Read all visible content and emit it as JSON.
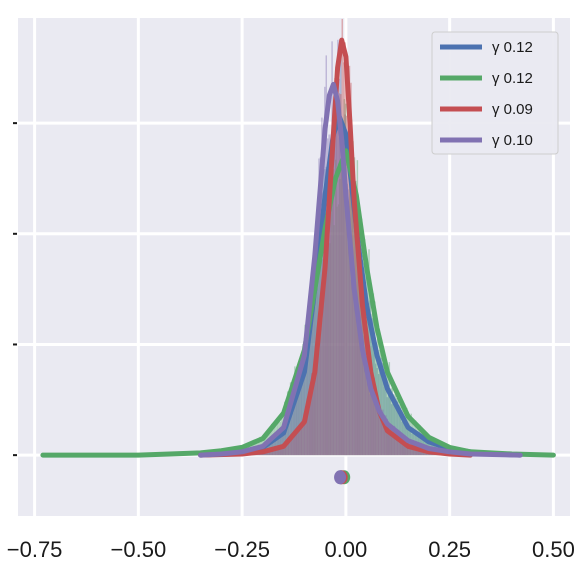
{
  "chart_data": {
    "type": "line",
    "title": "",
    "xlabel": "",
    "ylabel": "",
    "xlim": [
      -0.79,
      0.54
    ],
    "ylim": [
      -0.55,
      3.95
    ],
    "grid": true,
    "legend_position": "top-right",
    "x_ticks": [
      -0.75,
      -0.5,
      -0.25,
      0.0,
      0.25,
      0.5
    ],
    "x_tick_labels": [
      "−0.75",
      "−0.50",
      "−0.25",
      "0.00",
      "0.25",
      "0.50"
    ],
    "y_ticks": [
      0,
      1,
      2,
      3,
      4
    ],
    "series": [
      {
        "name": "γ 0.12",
        "color": "#4c72b0",
        "x": [
          -0.35,
          -0.3,
          -0.25,
          -0.2,
          -0.15,
          -0.1,
          -0.075,
          -0.05,
          -0.03,
          -0.015,
          0.0,
          0.015,
          0.03,
          0.05,
          0.075,
          0.1,
          0.15,
          0.2,
          0.25,
          0.3,
          0.35,
          0.42
        ],
        "y": [
          0.0,
          0.01,
          0.03,
          0.07,
          0.2,
          0.75,
          1.5,
          2.35,
          2.9,
          3.05,
          2.9,
          2.4,
          1.9,
          1.35,
          0.9,
          0.6,
          0.25,
          0.12,
          0.06,
          0.03,
          0.01,
          0.0
        ]
      },
      {
        "name": "γ 0.12",
        "color": "#55a868",
        "x": [
          -0.73,
          -0.5,
          -0.35,
          -0.3,
          -0.25,
          -0.2,
          -0.15,
          -0.1,
          -0.075,
          -0.05,
          -0.025,
          0.0,
          0.025,
          0.05,
          0.075,
          0.1,
          0.15,
          0.2,
          0.25,
          0.3,
          0.4,
          0.5
        ],
        "y": [
          0.0,
          0.0,
          0.02,
          0.04,
          0.07,
          0.15,
          0.38,
          0.95,
          1.5,
          2.05,
          2.5,
          2.75,
          2.35,
          1.7,
          1.15,
          0.75,
          0.35,
          0.16,
          0.07,
          0.03,
          0.01,
          0.0
        ]
      },
      {
        "name": "γ 0.09",
        "color": "#c44e52",
        "x": [
          -0.35,
          -0.25,
          -0.2,
          -0.15,
          -0.1,
          -0.075,
          -0.05,
          -0.03,
          -0.02,
          -0.01,
          0.0,
          0.01,
          0.02,
          0.04,
          0.06,
          0.08,
          0.1,
          0.15,
          0.2,
          0.25,
          0.3
        ],
        "y": [
          0.0,
          0.01,
          0.03,
          0.08,
          0.3,
          0.75,
          1.7,
          2.9,
          3.5,
          3.75,
          3.6,
          3.0,
          2.3,
          1.35,
          0.75,
          0.4,
          0.22,
          0.08,
          0.03,
          0.01,
          0.0
        ]
      },
      {
        "name": "γ 0.10",
        "color": "#8172b2",
        "x": [
          -0.35,
          -0.3,
          -0.25,
          -0.2,
          -0.15,
          -0.1,
          -0.075,
          -0.05,
          -0.04,
          -0.03,
          -0.02,
          -0.01,
          0.0,
          0.02,
          0.04,
          0.06,
          0.08,
          0.1,
          0.15,
          0.2,
          0.25,
          0.3,
          0.42
        ],
        "y": [
          0.0,
          0.01,
          0.03,
          0.08,
          0.25,
          0.9,
          1.8,
          2.95,
          3.25,
          3.35,
          3.2,
          2.85,
          2.35,
          1.5,
          0.95,
          0.6,
          0.4,
          0.28,
          0.13,
          0.06,
          0.03,
          0.01,
          0.0
        ]
      }
    ],
    "rug": {
      "y": -0.2,
      "points": [
        {
          "x": -0.012,
          "color": "#4c72b0"
        },
        {
          "x": -0.004,
          "color": "#55a868"
        },
        {
          "x": -0.01,
          "color": "#c44e52"
        },
        {
          "x": -0.014,
          "color": "#8172b2"
        }
      ]
    }
  }
}
